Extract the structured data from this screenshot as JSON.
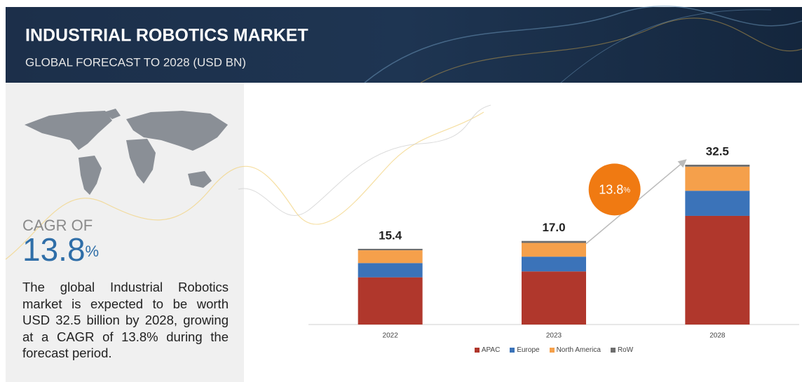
{
  "header": {
    "title": "INDUSTRIAL ROBOTICS MARKET",
    "subtitle": "GLOBAL FORECAST TO 2028 (USD BN)"
  },
  "sidebar": {
    "cagr_label": "CAGR OF",
    "cagr_value": "13.8",
    "cagr_unit": "%",
    "description": "The global Industrial Robotics market is expected to be worth USD 32.5 billion by 2028, growing at a CAGR of 13.8% during the forecast period."
  },
  "chart_data": {
    "type": "stacked_bar",
    "categories": [
      "2022",
      "2023",
      "2028"
    ],
    "series": [
      {
        "name": "APAC",
        "color": "#b0372c",
        "values": [
          9.6,
          10.8,
          22.1
        ]
      },
      {
        "name": "Europe",
        "color": "#3b73b9",
        "values": [
          2.9,
          3.0,
          5.1
        ]
      },
      {
        "name": "North America",
        "color": "#f5a04b",
        "values": [
          2.6,
          2.8,
          4.9
        ]
      },
      {
        "name": "RoW",
        "color": "#6e6e6e",
        "values": [
          0.3,
          0.4,
          0.4
        ]
      }
    ],
    "totals": [
      15.4,
      17.0,
      32.5
    ],
    "total_labels": [
      "15.4",
      "17.0",
      "32.5"
    ],
    "annotation_value": "13.8",
    "annotation_unit": "%",
    "annotation_color": "#f07a12"
  }
}
